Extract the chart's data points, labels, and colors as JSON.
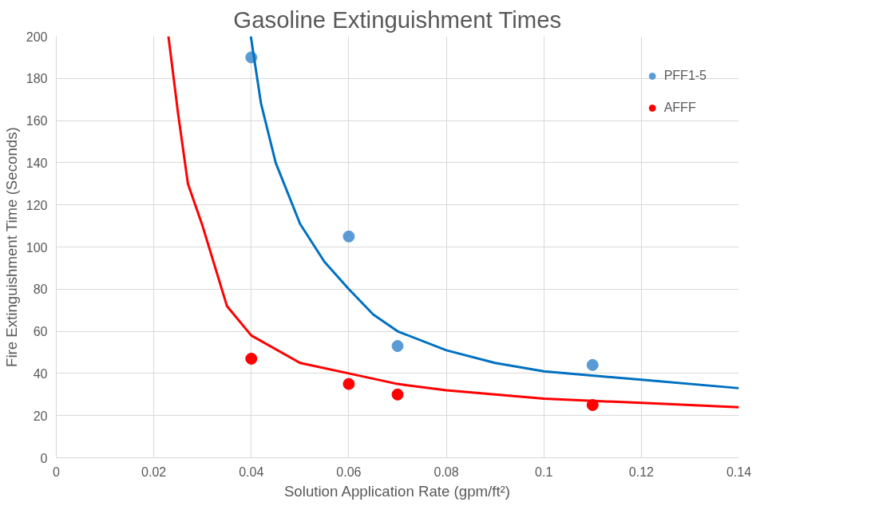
{
  "chart_data": {
    "type": "scatter",
    "title": "Gasoline Extinguishment Times",
    "xlabel": "Solution Application Rate (gpm/ft²)",
    "ylabel": "Fire Extinguishment Time (Seconds)",
    "xlim": [
      0,
      0.14
    ],
    "ylim": [
      0,
      200
    ],
    "xticks": [
      0,
      0.02,
      0.04,
      0.06,
      0.08,
      0.1,
      0.12,
      0.14
    ],
    "yticks": [
      0,
      20,
      40,
      60,
      80,
      100,
      120,
      140,
      160,
      180,
      200
    ],
    "grid": true,
    "legend": "top right",
    "series": [
      {
        "name": "PFF1-5",
        "color": "#5b9bd5",
        "marker": "circle",
        "x": [
          0.04,
          0.06,
          0.07,
          0.11
        ],
        "values": [
          190,
          105,
          53,
          44
        ]
      },
      {
        "name": "AFFF",
        "color": "#ff0000",
        "marker": "circle",
        "x": [
          0.04,
          0.06,
          0.07,
          0.11
        ],
        "values": [
          47,
          35,
          30,
          25
        ]
      },
      {
        "type": "line",
        "marker": "none",
        "color": "#0070c0",
        "x": [
          0.0399,
          0.042,
          0.045,
          0.05,
          0.055,
          0.06,
          0.065,
          0.07,
          0.08,
          0.09,
          0.1,
          0.12,
          0.14
        ],
        "values": [
          200,
          168,
          140,
          111,
          93,
          80,
          68,
          60,
          51,
          45,
          41,
          37,
          33
        ]
      },
      {
        "type": "line",
        "marker": "none",
        "color": "#ff0000",
        "x": [
          0.023,
          0.025,
          0.027,
          0.03,
          0.035,
          0.04,
          0.05,
          0.06,
          0.07,
          0.08,
          0.1,
          0.12,
          0.14
        ],
        "values": [
          200,
          163,
          130,
          110,
          72,
          58,
          45,
          40,
          35,
          32,
          28,
          26,
          24
        ]
      }
    ]
  }
}
